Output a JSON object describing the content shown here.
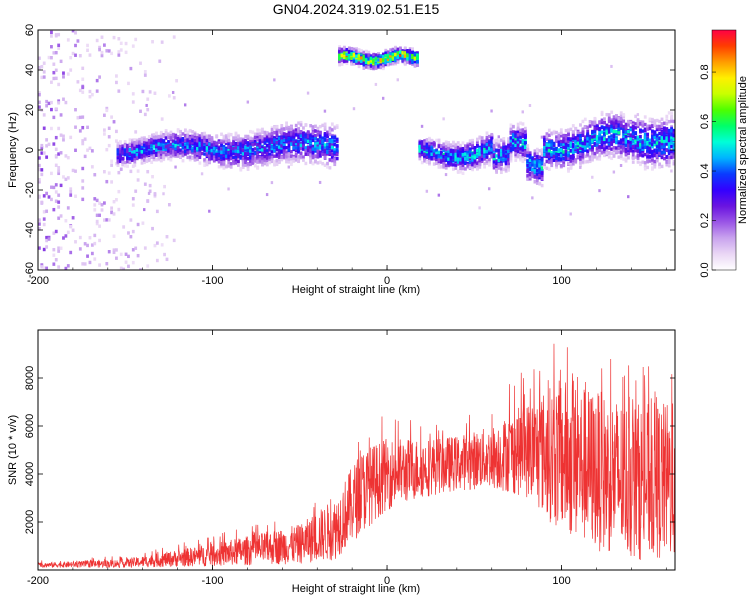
{
  "title": "GN04.2024.319.02.51.E15",
  "chart_data": [
    {
      "type": "heatmap",
      "xlabel": "Height of straight line (km)",
      "ylabel": "Frequency (Hz)",
      "xlim": [
        -200,
        165
      ],
      "ylim": [
        -60,
        60
      ],
      "x_ticks": [
        "-200",
        "-100",
        "0",
        "100"
      ],
      "y_ticks": [
        "60",
        "40",
        "20",
        "0",
        "-20",
        "-40",
        "-60"
      ],
      "colorbar": {
        "label": "Normalized spectral amplitude",
        "range": [
          0,
          0.97
        ],
        "ticks": [
          "0.0",
          "0.2",
          "0.4",
          "0.6",
          "0.8"
        ],
        "colormap": [
          "#ffffff",
          "#ead7f5",
          "#c9a3ee",
          "#9a55e6",
          "#6a14e0",
          "#3300ff",
          "#0a3bff",
          "#00b4ff",
          "#00ffd8",
          "#00ff6a",
          "#4dff00",
          "#c8ff00",
          "#ffef00",
          "#ff9c00",
          "#ff3d00",
          "#ff0044"
        ]
      },
      "bands": [
        {
          "x_range": [
            -200,
            -120
          ],
          "center_hz": 0,
          "spread_hz": 60,
          "amplitude": 0.15,
          "description": "broadband noise"
        },
        {
          "x_range": [
            -155,
            -28
          ],
          "center_hz": 0,
          "spread_hz": 9,
          "amplitude": 0.45
        },
        {
          "x_range": [
            -28,
            18
          ],
          "center_hz": 46,
          "spread_hz": 4,
          "amplitude": 0.8
        },
        {
          "x_range": [
            18,
            165
          ],
          "center_hz": 0,
          "spread_hz": 8,
          "amplitude": 0.5
        }
      ],
      "gap_x": [
        -28,
        18
      ]
    },
    {
      "type": "line",
      "xlabel": "Height of straight line (km)",
      "ylabel": "SNR (10 * v/v)",
      "xlim": [
        -200,
        165
      ],
      "ylim": [
        0,
        10000
      ],
      "x_ticks": [
        "-200",
        "-100",
        "0",
        "100"
      ],
      "y_ticks": [
        "2000",
        "4000",
        "6000",
        "8000"
      ],
      "color": "#ee3333",
      "envelope": {
        "x": [
          -200,
          -150,
          -100,
          -50,
          -30,
          -15,
          0,
          20,
          40,
          60,
          80,
          100,
          120,
          140,
          165
        ],
        "y_low": [
          100,
          100,
          150,
          250,
          400,
          1500,
          2500,
          3000,
          3300,
          3400,
          3000,
          1500,
          800,
          400,
          400
        ],
        "y_high": [
          300,
          450,
          1100,
          1900,
          3000,
          5000,
          5500,
          5500,
          5600,
          6000,
          7000,
          8000,
          7500,
          7000,
          7000
        ],
        "peak_y": [
          400,
          600,
          1500,
          2300,
          3500,
          6000,
          6500,
          6200,
          6500,
          7200,
          8500,
          10000,
          9000,
          8500,
          8500
        ]
      }
    }
  ]
}
